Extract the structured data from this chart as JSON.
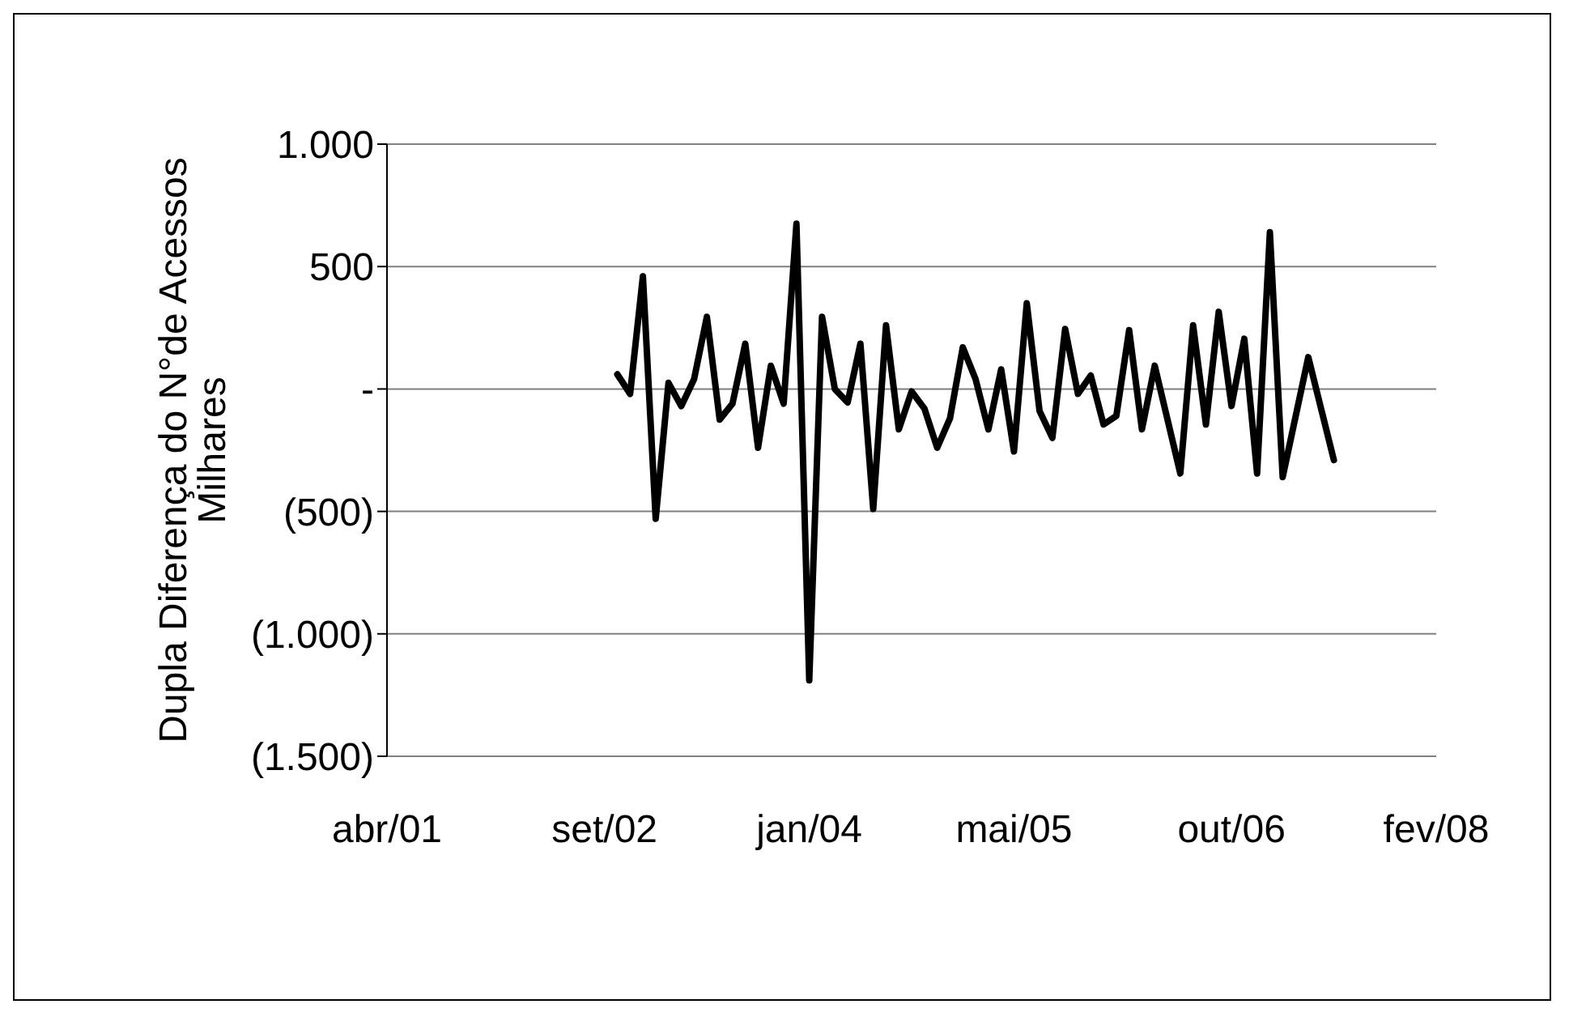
{
  "chart_data": {
    "type": "line",
    "ylabel": "Dupla Diferença do N°de Acessos\nMilhares",
    "x": [
      "2002-10",
      "2002-11",
      "2002-12",
      "2003-01",
      "2003-02",
      "2003-03",
      "2003-04",
      "2003-05",
      "2003-06",
      "2003-07",
      "2003-08",
      "2003-09",
      "2003-10",
      "2003-11",
      "2003-12",
      "2004-01",
      "2004-02",
      "2004-03",
      "2004-04",
      "2004-05",
      "2004-06",
      "2004-07",
      "2004-08",
      "2004-09",
      "2004-10",
      "2004-11",
      "2004-12",
      "2005-01",
      "2005-02",
      "2005-03",
      "2005-04",
      "2005-05",
      "2005-06",
      "2005-07",
      "2005-08",
      "2005-09",
      "2005-10",
      "2005-11",
      "2005-12",
      "2006-01",
      "2006-02",
      "2006-03",
      "2006-04",
      "2006-05",
      "2006-06",
      "2006-07",
      "2006-08",
      "2006-09",
      "2006-10",
      "2006-11",
      "2006-12",
      "2007-01",
      "2007-02",
      "2007-03",
      "2007-04",
      "2007-05",
      "2007-06"
    ],
    "series": [
      {
        "color": "#000000",
        "values": [
          60,
          -20,
          460,
          -530,
          25,
          -70,
          40,
          295,
          -125,
          -60,
          185,
          -240,
          95,
          -60,
          675,
          -1190,
          295,
          0,
          -55,
          185,
          -490,
          260,
          -165,
          -10,
          -80,
          -240,
          -120,
          170,
          40,
          -165,
          80,
          -255,
          350,
          -90,
          -200,
          245,
          -20,
          55,
          -145,
          -110,
          240,
          -165,
          95,
          -125,
          -345,
          260,
          -145,
          315,
          -70,
          205,
          -345,
          640,
          -360,
          -115,
          130,
          -80,
          -290
        ]
      }
    ],
    "xlim": [
      "2001-04",
      "2008-02"
    ],
    "xticks": [
      {
        "value": "2001-04",
        "label": "abr/01"
      },
      {
        "value": "2002-09",
        "label": "set/02"
      },
      {
        "value": "2004-01",
        "label": "jan/04"
      },
      {
        "value": "2005-05",
        "label": "mai/05"
      },
      {
        "value": "2006-10",
        "label": "out/06"
      },
      {
        "value": "2008-02",
        "label": "fev/08"
      }
    ],
    "ylim": [
      -1500,
      1000
    ],
    "yticks": [
      {
        "value": 1000,
        "label": "1.000"
      },
      {
        "value": 500,
        "label": "500"
      },
      {
        "value": 0,
        "label": "-"
      },
      {
        "value": -500,
        "label": "(500)"
      },
      {
        "value": -1000,
        "label": "(1.000)"
      },
      {
        "value": -1500,
        "label": "(1.500)"
      }
    ],
    "grid": "y",
    "legend": false,
    "marker": "none",
    "line_style": "solid"
  }
}
